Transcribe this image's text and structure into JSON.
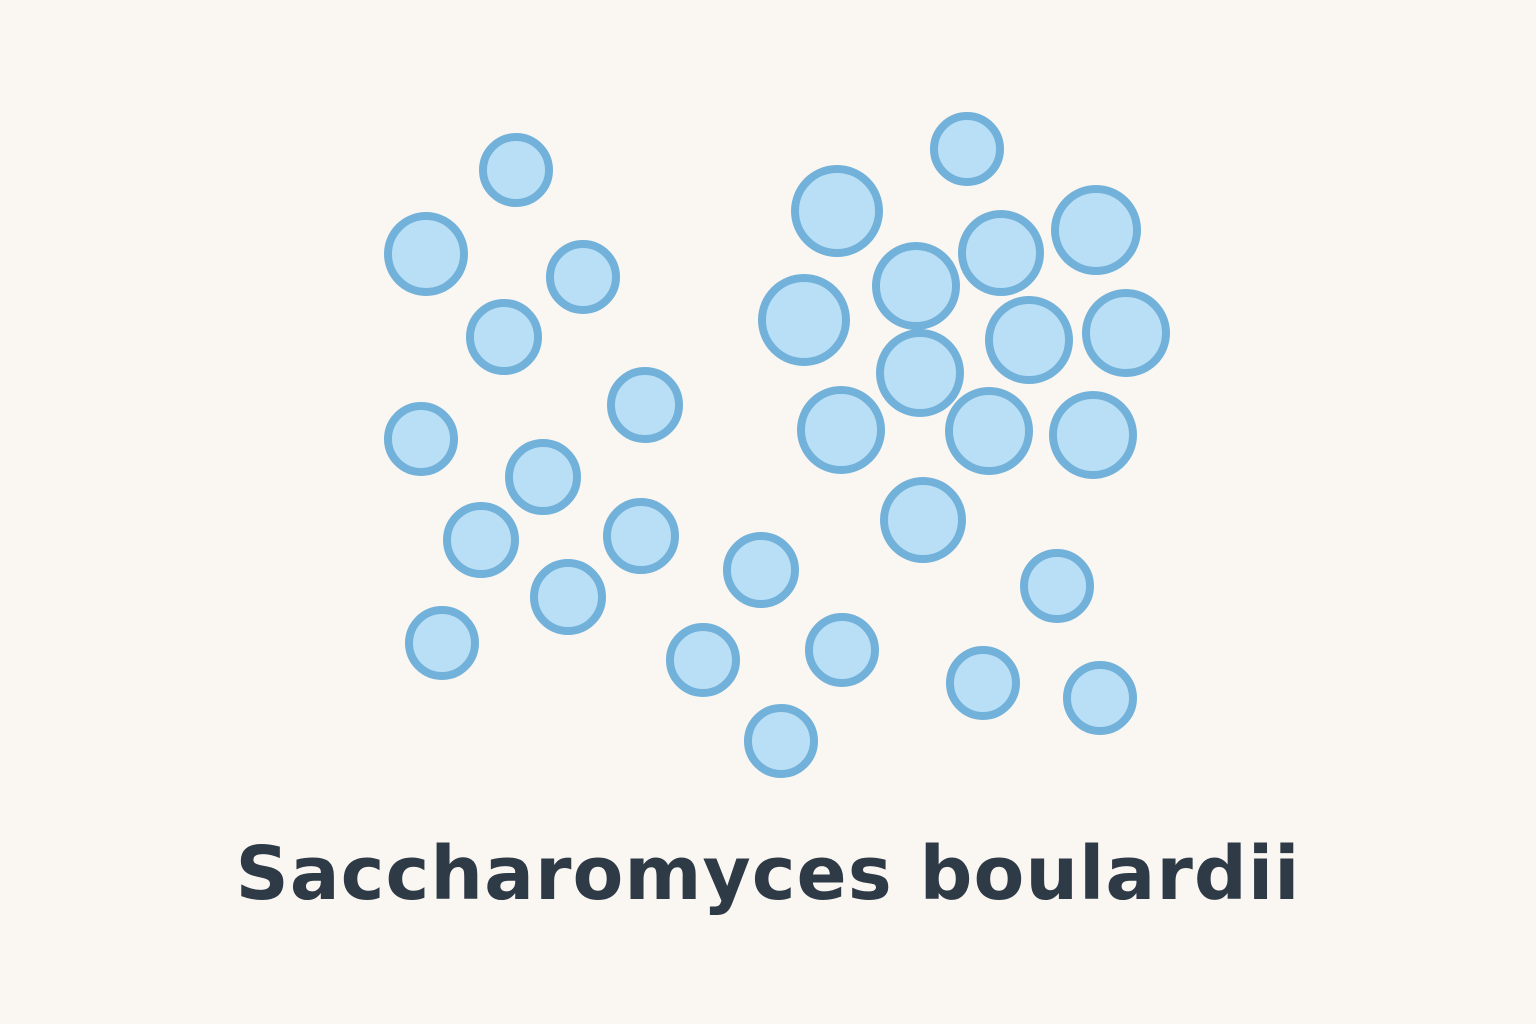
{
  "caption": "Saccharomyces boulardii",
  "colors": {
    "background": "#faf7f2",
    "cell_fill": "#b9dff6",
    "cell_outline": "#72b1da",
    "caption_text": "#2e3a46"
  }
}
